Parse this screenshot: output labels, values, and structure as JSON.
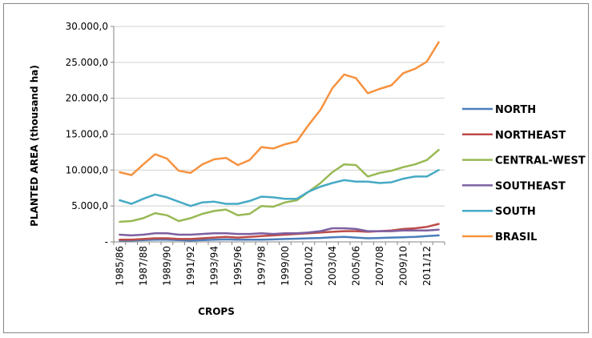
{
  "chart_data": {
    "type": "line",
    "title": "",
    "xlabel": "CROPS",
    "ylabel": "PLANTED AREA  (thousand ha)",
    "ylim": [
      0,
      30000
    ],
    "yticks": [
      0,
      5000,
      10000,
      15000,
      20000,
      25000,
      30000
    ],
    "ytick_labels": [
      "-",
      "5.000,0",
      "10.000,0",
      "15.000,0",
      "20.000,0",
      "25.000,0",
      "30.000,0"
    ],
    "grid": "horizontal",
    "legend_position": "right",
    "categories": [
      "1985/86",
      "1986/87",
      "1987/88",
      "1988/89",
      "1989/90",
      "1990/91",
      "1991/92",
      "1992/93",
      "1993/94",
      "1994/95",
      "1995/96",
      "1996/97",
      "1997/98",
      "1998/99",
      "1999/00",
      "2000/01",
      "2001/02",
      "2002/03",
      "2003/04",
      "2004/05",
      "2005/06",
      "2006/07",
      "2007/08",
      "2008/09",
      "2009/10",
      "2010/11",
      "2011/12",
      "2012/13"
    ],
    "xtick_labels": [
      "1985/86",
      "1987/88",
      "1989/90",
      "1991/92",
      "1993/94",
      "1995/96",
      "1997/98",
      "1999/00",
      "2001/02",
      "2003/04",
      "2005/06",
      "2007/08",
      "2009/10",
      "2011/12"
    ],
    "series": [
      {
        "name": "NORTH",
        "color": "#4a7ebb",
        "values": [
          200,
          200,
          250,
          300,
          300,
          250,
          200,
          250,
          300,
          350,
          300,
          300,
          300,
          350,
          400,
          450,
          500,
          550,
          650,
          700,
          600,
          500,
          550,
          600,
          650,
          700,
          800,
          900
        ]
      },
      {
        "name": "NORTHEAST",
        "color": "#be4b48",
        "values": [
          300,
          300,
          400,
          500,
          500,
          400,
          400,
          500,
          600,
          700,
          600,
          700,
          800,
          900,
          1000,
          1100,
          1200,
          1300,
          1400,
          1500,
          1500,
          1400,
          1500,
          1600,
          1800,
          1900,
          2100,
          2500
        ]
      },
      {
        "name": "CENTRAL-WEST",
        "color": "#98b954",
        "values": [
          2800,
          2900,
          3300,
          4000,
          3700,
          2900,
          3300,
          3900,
          4300,
          4500,
          3700,
          3900,
          5000,
          4900,
          5500,
          5800,
          7000,
          8200,
          9700,
          10800,
          10700,
          9100,
          9600,
          9900,
          10400,
          10800,
          11400,
          12800
        ]
      },
      {
        "name": "SOUTHEAST",
        "color": "#7d60a0",
        "values": [
          1000,
          900,
          1000,
          1200,
          1200,
          1000,
          1000,
          1100,
          1200,
          1200,
          1100,
          1100,
          1200,
          1100,
          1200,
          1200,
          1300,
          1500,
          1900,
          1900,
          1800,
          1500,
          1500,
          1500,
          1600,
          1600,
          1600,
          1700
        ]
      },
      {
        "name": "SOUTH",
        "color": "#46aac5",
        "values": [
          5800,
          5300,
          6000,
          6600,
          6200,
          5600,
          5000,
          5500,
          5600,
          5300,
          5300,
          5700,
          6300,
          6200,
          6000,
          6000,
          7000,
          7700,
          8200,
          8600,
          8400,
          8400,
          8200,
          8300,
          8800,
          9100,
          9100,
          10000
        ]
      },
      {
        "name": "BRASIL",
        "color": "#f69240",
        "values": [
          9700,
          9300,
          10800,
          12200,
          11600,
          9900,
          9600,
          10800,
          11500,
          11700,
          10700,
          11400,
          13200,
          13000,
          13600,
          14000,
          16300,
          18400,
          21400,
          23300,
          22800,
          20700,
          21300,
          21800,
          23500,
          24100,
          25100,
          27800
        ]
      }
    ]
  }
}
